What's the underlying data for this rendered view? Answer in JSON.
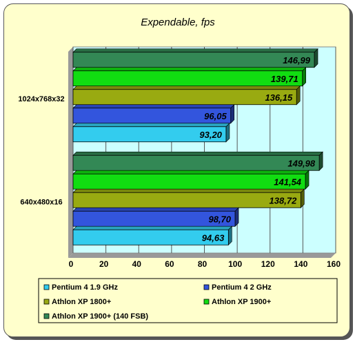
{
  "chart_data": {
    "type": "bar",
    "orientation": "horizontal",
    "title": "Expendable, fps",
    "categories": [
      "1024x768x32",
      "640x480x16"
    ],
    "series": [
      {
        "name": "Pentium 4 1.9 GHz",
        "color": "#33ccee",
        "values": [
          93.2,
          94.63
        ],
        "labels": [
          "93,20",
          "94,63"
        ]
      },
      {
        "name": "Pentium 4 2 GHz",
        "color": "#3355dd",
        "values": [
          96.05,
          98.7
        ],
        "labels": [
          "96,05",
          "98,70"
        ]
      },
      {
        "name": "Athlon XP 1800+",
        "color": "#99aa11",
        "values": [
          136.15,
          138.72
        ],
        "labels": [
          "136,15",
          "138,72"
        ]
      },
      {
        "name": "Athlon XP 1900+",
        "color": "#11dd11",
        "values": [
          139.71,
          141.54
        ],
        "labels": [
          "139,71",
          "141,54"
        ]
      },
      {
        "name": "Athlon XP 1900+ (140 FSB)",
        "color": "#338855",
        "values": [
          146.99,
          149.98
        ],
        "labels": [
          "146,99",
          "149,98"
        ]
      }
    ],
    "xlim": [
      0,
      160
    ],
    "xticks": [
      "0",
      "20",
      "40",
      "60",
      "80",
      "100",
      "120",
      "140",
      "160"
    ],
    "grid": true,
    "plot_background": "#ccffff",
    "legend_position": "bottom"
  }
}
